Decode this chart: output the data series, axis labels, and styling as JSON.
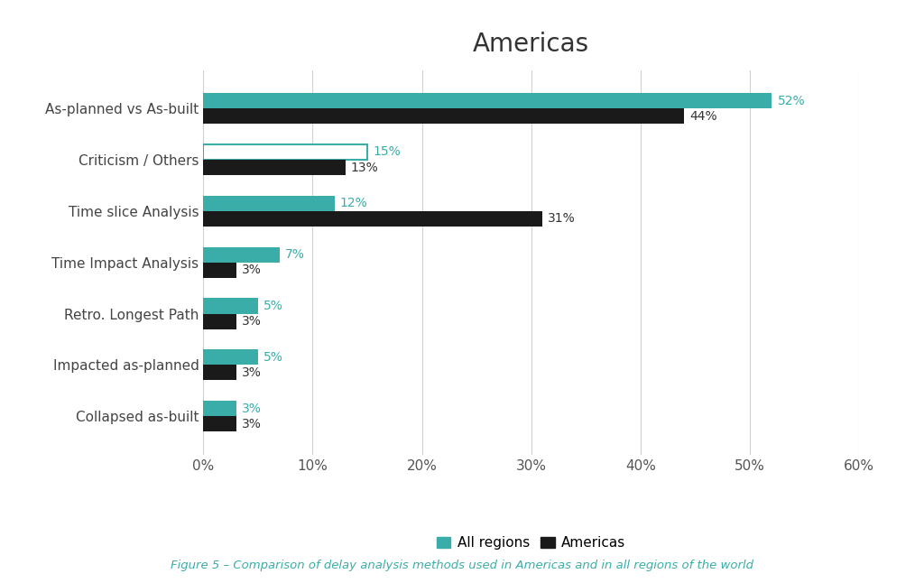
{
  "title": "Americas",
  "categories": [
    "As-planned vs As-built",
    "Criticism / Others",
    "Time slice Analysis",
    "Time Impact Analysis",
    "Retro. Longest Path",
    "Impacted as-planned",
    "Collapsed as-built"
  ],
  "all_regions": [
    52,
    15,
    12,
    7,
    5,
    5,
    3
  ],
  "americas": [
    44,
    13,
    31,
    3,
    3,
    3,
    3
  ],
  "all_regions_color": "#3aada8",
  "americas_color": "#1a1a1a",
  "criticism_others_all_regions_color": "#ffffff",
  "criticism_others_all_regions_edgecolor": "#3aada8",
  "bar_height": 0.3,
  "xlim": [
    0,
    60
  ],
  "xticks": [
    0,
    10,
    20,
    30,
    40,
    50,
    60
  ],
  "xticklabels": [
    "0%",
    "10%",
    "20%",
    "30%",
    "40%",
    "50%",
    "60%"
  ],
  "title_fontsize": 20,
  "label_fontsize": 11,
  "tick_fontsize": 11,
  "value_fontsize": 10,
  "legend_fontsize": 11,
  "caption": "Figure 5 – Comparison of delay analysis methods used in Americas and in all regions of the world",
  "caption_color": "#3aada8",
  "background_color": "#ffffff",
  "grid_color": "#d0d0d0"
}
